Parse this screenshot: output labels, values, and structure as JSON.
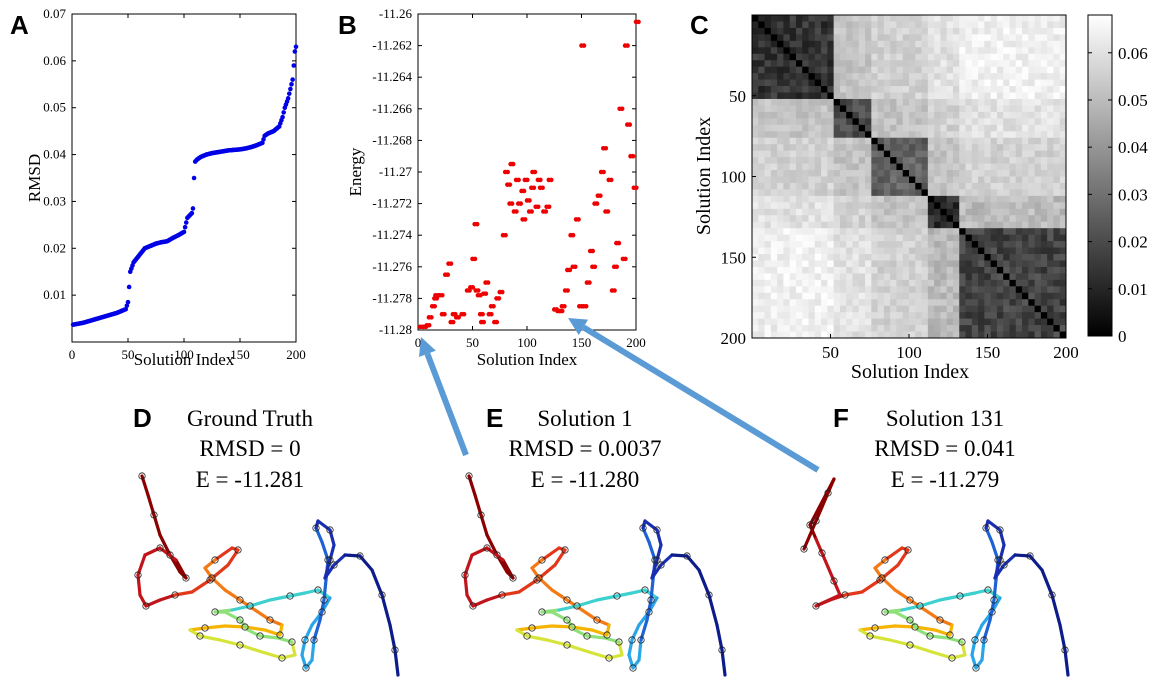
{
  "panel_labels": {
    "a": "A",
    "b": "B",
    "c": "C",
    "d": "D",
    "e": "E",
    "f": "F"
  },
  "chart_data": [
    {
      "id": "A",
      "type": "scatter",
      "xlabel": "Solution Index",
      "ylabel": "RMSD",
      "xlim": [
        0,
        200
      ],
      "ylim": [
        0,
        0.07
      ],
      "xticks": [
        0,
        50,
        100,
        150,
        200
      ],
      "yticks": [
        "0.01",
        "0.02",
        "0.03",
        "0.04",
        "0.05",
        "0.06",
        "0.07"
      ],
      "color": "#0000e6",
      "series": [
        {
          "x": [
            1,
            10,
            20,
            30,
            40,
            48,
            50,
            52,
            55,
            60,
            65,
            70,
            75,
            80,
            85,
            90,
            95,
            100,
            103,
            105,
            107,
            108,
            109,
            110,
            112,
            115,
            120,
            125,
            130,
            135,
            140,
            145,
            150,
            155,
            160,
            165,
            170,
            172,
            175,
            180,
            185,
            188,
            190,
            193,
            195,
            197,
            198,
            199,
            200
          ],
          "y": [
            0.0037,
            0.0041,
            0.0048,
            0.0055,
            0.0062,
            0.007,
            0.0085,
            0.015,
            0.017,
            0.0185,
            0.02,
            0.0205,
            0.021,
            0.0213,
            0.0215,
            0.0222,
            0.0228,
            0.0235,
            0.0265,
            0.027,
            0.0275,
            0.0285,
            0.035,
            0.0385,
            0.039,
            0.0395,
            0.04,
            0.0403,
            0.0405,
            0.0407,
            0.0409,
            0.041,
            0.0411,
            0.0413,
            0.0416,
            0.042,
            0.0425,
            0.044,
            0.0445,
            0.045,
            0.046,
            0.048,
            0.05,
            0.052,
            0.054,
            0.056,
            0.059,
            0.062,
            0.063
          ]
        }
      ]
    },
    {
      "id": "B",
      "type": "scatter",
      "xlabel": "Solution Index",
      "ylabel": "Energy",
      "xlim": [
        0,
        200
      ],
      "ylim": [
        -11.28,
        -11.26
      ],
      "xticks": [
        0,
        50,
        100,
        150,
        200
      ],
      "yticks": [
        "-11.28",
        "-11.278",
        "-11.276",
        "-11.274",
        "-11.272",
        "-11.27",
        "-11.268",
        "-11.266",
        "-11.264",
        "-11.262",
        "-11.26"
      ],
      "color": "#ee0000",
      "series": [
        {
          "x": [
            2,
            5,
            8,
            10,
            13,
            15,
            16,
            20,
            22,
            25,
            28,
            30,
            32,
            35,
            40,
            45,
            48,
            50,
            52,
            53,
            55,
            57,
            58,
            60,
            62,
            65,
            67,
            70,
            72,
            75,
            78,
            80,
            82,
            84,
            85,
            88,
            90,
            92,
            95,
            96,
            98,
            100,
            102,
            104,
            105,
            108,
            110,
            112,
            115,
            118,
            120,
            125,
            128,
            130,
            132,
            135,
            137,
            140,
            142,
            145,
            148,
            150,
            152,
            155,
            158,
            160,
            162,
            165,
            168,
            170,
            172,
            175,
            178,
            180,
            182,
            185,
            188,
            190,
            192,
            195,
            198,
            200
          ],
          "y": [
            -11.2798,
            -11.2798,
            -11.2797,
            -11.2792,
            -11.2785,
            -11.278,
            -11.2778,
            -11.2778,
            -11.279,
            -11.2765,
            -11.2758,
            -11.2795,
            -11.279,
            -11.2792,
            -11.279,
            -11.2775,
            -11.2773,
            -11.2755,
            -11.2733,
            -11.2775,
            -11.2778,
            -11.279,
            -11.2795,
            -11.2777,
            -11.277,
            -11.279,
            -11.2785,
            -11.2795,
            -11.278,
            -11.2776,
            -11.274,
            -11.27,
            -11.2708,
            -11.272,
            -11.2695,
            -11.2725,
            -11.2705,
            -11.272,
            -11.2712,
            -11.273,
            -11.2705,
            -11.2718,
            -11.2725,
            -11.271,
            -11.27,
            -11.2722,
            -11.2705,
            -11.271,
            -11.2725,
            -11.2722,
            -11.2705,
            -11.2787,
            -11.2788,
            -11.2788,
            -11.2785,
            -11.2775,
            -11.2762,
            -11.274,
            -11.276,
            -11.273,
            -11.2785,
            -11.262,
            -11.2785,
            -11.277,
            -11.275,
            -11.276,
            -11.272,
            -11.2715,
            -11.27,
            -11.2685,
            -11.2725,
            -11.2705,
            -11.2775,
            -11.276,
            -11.2745,
            -11.266,
            -11.2755,
            -11.262,
            -11.267,
            -11.269,
            -11.271,
            -11.2605
          ]
        }
      ]
    },
    {
      "id": "C",
      "type": "heatmap",
      "xlabel": "Solution Index",
      "ylabel": "Solution Index",
      "xlim": [
        0,
        200
      ],
      "ylim": [
        0,
        200
      ],
      "xticks": [
        50,
        100,
        150,
        200
      ],
      "yticks": [
        50,
        100,
        150,
        200
      ],
      "colorbar_ticks": [
        "0",
        "0.01",
        "0.02",
        "0.03",
        "0.04",
        "0.05",
        "0.06"
      ],
      "colorbar_range": [
        0,
        0.068
      ],
      "colormap": "gray",
      "blocks": [
        {
          "from": 1,
          "to": 50,
          "within": 0.008
        },
        {
          "from": 51,
          "to": 75,
          "within": 0.014
        },
        {
          "from": 76,
          "to": 110,
          "within": 0.02
        },
        {
          "from": 111,
          "to": 130,
          "within": 0.006
        },
        {
          "from": 131,
          "to": 200,
          "within": 0.012
        }
      ],
      "between": 0.052
    }
  ],
  "captions": {
    "d": {
      "title": "Ground Truth",
      "rmsd": "RMSD = 0",
      "energy": "E = -11.281"
    },
    "e": {
      "title": "Solution 1",
      "rmsd": "RMSD = 0.0037",
      "energy": "E = -11.280"
    },
    "f": {
      "title": "Solution 131",
      "rmsd": "RMSD = 0.041",
      "energy": "E = -11.279"
    }
  },
  "arrows": {
    "color": "#5b9bd5"
  },
  "curve_colors": [
    "#8b0000",
    "#c0141a",
    "#e3371a",
    "#f47a16",
    "#f5b400",
    "#d6e43a",
    "#8ee079",
    "#3dd0cf",
    "#2aa6e8",
    "#1e63d4",
    "#1a2fb0",
    "#0c1c8a"
  ]
}
